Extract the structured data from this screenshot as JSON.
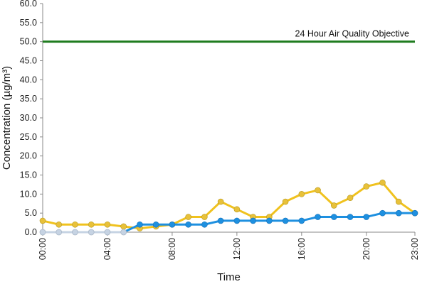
{
  "chart_data": {
    "type": "line",
    "xlabel": "Time",
    "ylabel": "Concentration (µg/m³)",
    "ylim": [
      0,
      60
    ],
    "y_ticks": [
      "0.0",
      "5.0",
      "10.0",
      "15.0",
      "20.0",
      "25.0",
      "30.0",
      "35.0",
      "40.0",
      "45.0",
      "50.0",
      "55.0",
      "60.0"
    ],
    "x_ticks": [
      "00:00",
      "04:00",
      "08:00",
      "12:00",
      "16:00",
      "20:00",
      "23:00"
    ],
    "x_tick_hours": [
      0,
      4,
      8,
      12,
      16,
      20,
      23
    ],
    "x_range": [
      0,
      23
    ],
    "grid": false,
    "reference_line": {
      "label": "24 Hour Air Quality Objective",
      "value": 50,
      "color": "#1e7b1e"
    },
    "series": [
      {
        "color": "#f0c21e",
        "marker_color": "#e8c13a",
        "x": [
          0,
          1,
          2,
          3,
          4,
          5,
          6,
          7,
          8,
          9,
          10,
          11,
          12,
          13,
          14,
          15,
          16,
          17,
          18,
          19,
          20,
          21,
          22,
          23
        ],
        "values": [
          3,
          2,
          2,
          2,
          2,
          1.5,
          1,
          1.5,
          2,
          4,
          4,
          8,
          6,
          4,
          4,
          8,
          10,
          11,
          7,
          9,
          12,
          13,
          8,
          5
        ]
      },
      {
        "color": "#1e90e0",
        "marker_color": "#1e90e0",
        "missing_color": "#c6d3e3",
        "x": [
          0,
          1,
          2,
          3,
          4,
          5,
          6,
          7,
          8,
          9,
          10,
          11,
          12,
          13,
          14,
          15,
          16,
          17,
          18,
          19,
          20,
          21,
          22,
          23
        ],
        "values": [
          0,
          0,
          0,
          0,
          0,
          0,
          2,
          2,
          2,
          2,
          2,
          3,
          3,
          3,
          3,
          3,
          3,
          4,
          4,
          4,
          4,
          5,
          5,
          5
        ],
        "missing_until_hour": 5
      }
    ]
  }
}
